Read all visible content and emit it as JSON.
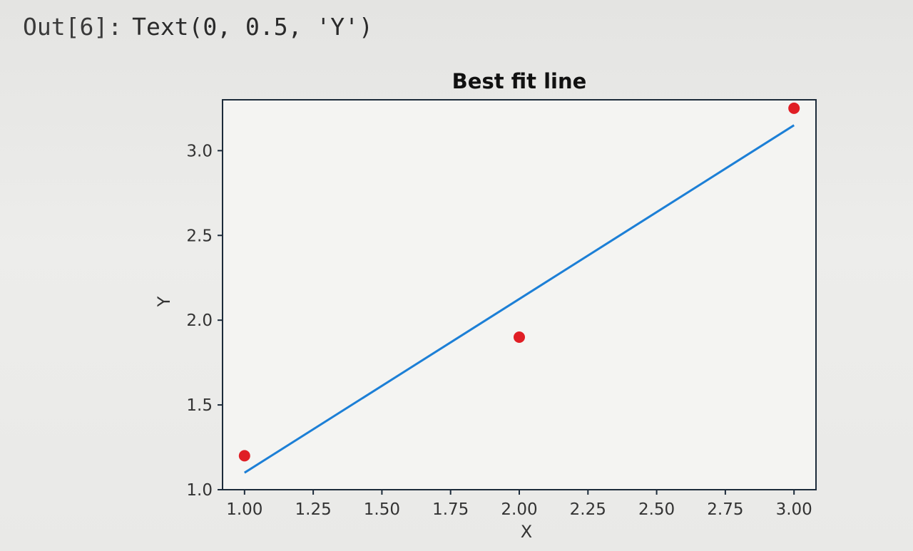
{
  "output": {
    "prompt": "Out[6]:",
    "text": "Text(0, 0.5, 'Y')"
  },
  "chart_data": {
    "type": "scatter",
    "title": "Best fit line",
    "xlabel": "X",
    "ylabel": "Y",
    "xlim": [
      0.92,
      3.08
    ],
    "ylim": [
      1.0,
      3.3
    ],
    "xticks": [
      1.0,
      1.25,
      1.5,
      1.75,
      2.0,
      2.25,
      2.5,
      2.75,
      3.0
    ],
    "xtick_labels": [
      "1.00",
      "1.25",
      "1.50",
      "1.75",
      "2.00",
      "2.25",
      "2.50",
      "2.75",
      "3.00"
    ],
    "yticks": [
      1.0,
      1.5,
      2.0,
      2.5,
      3.0
    ],
    "ytick_labels": [
      "1.0",
      "1.5",
      "2.0",
      "2.5",
      "3.0"
    ],
    "grid": false,
    "series": [
      {
        "type": "scatter",
        "x": [
          1.0,
          2.0,
          3.0
        ],
        "y": [
          1.2,
          1.9,
          3.25
        ],
        "color": "#e01e25"
      },
      {
        "type": "line",
        "x": [
          1.0,
          3.0
        ],
        "y": [
          1.1,
          3.15
        ],
        "color": "#1c7fd6"
      }
    ]
  }
}
